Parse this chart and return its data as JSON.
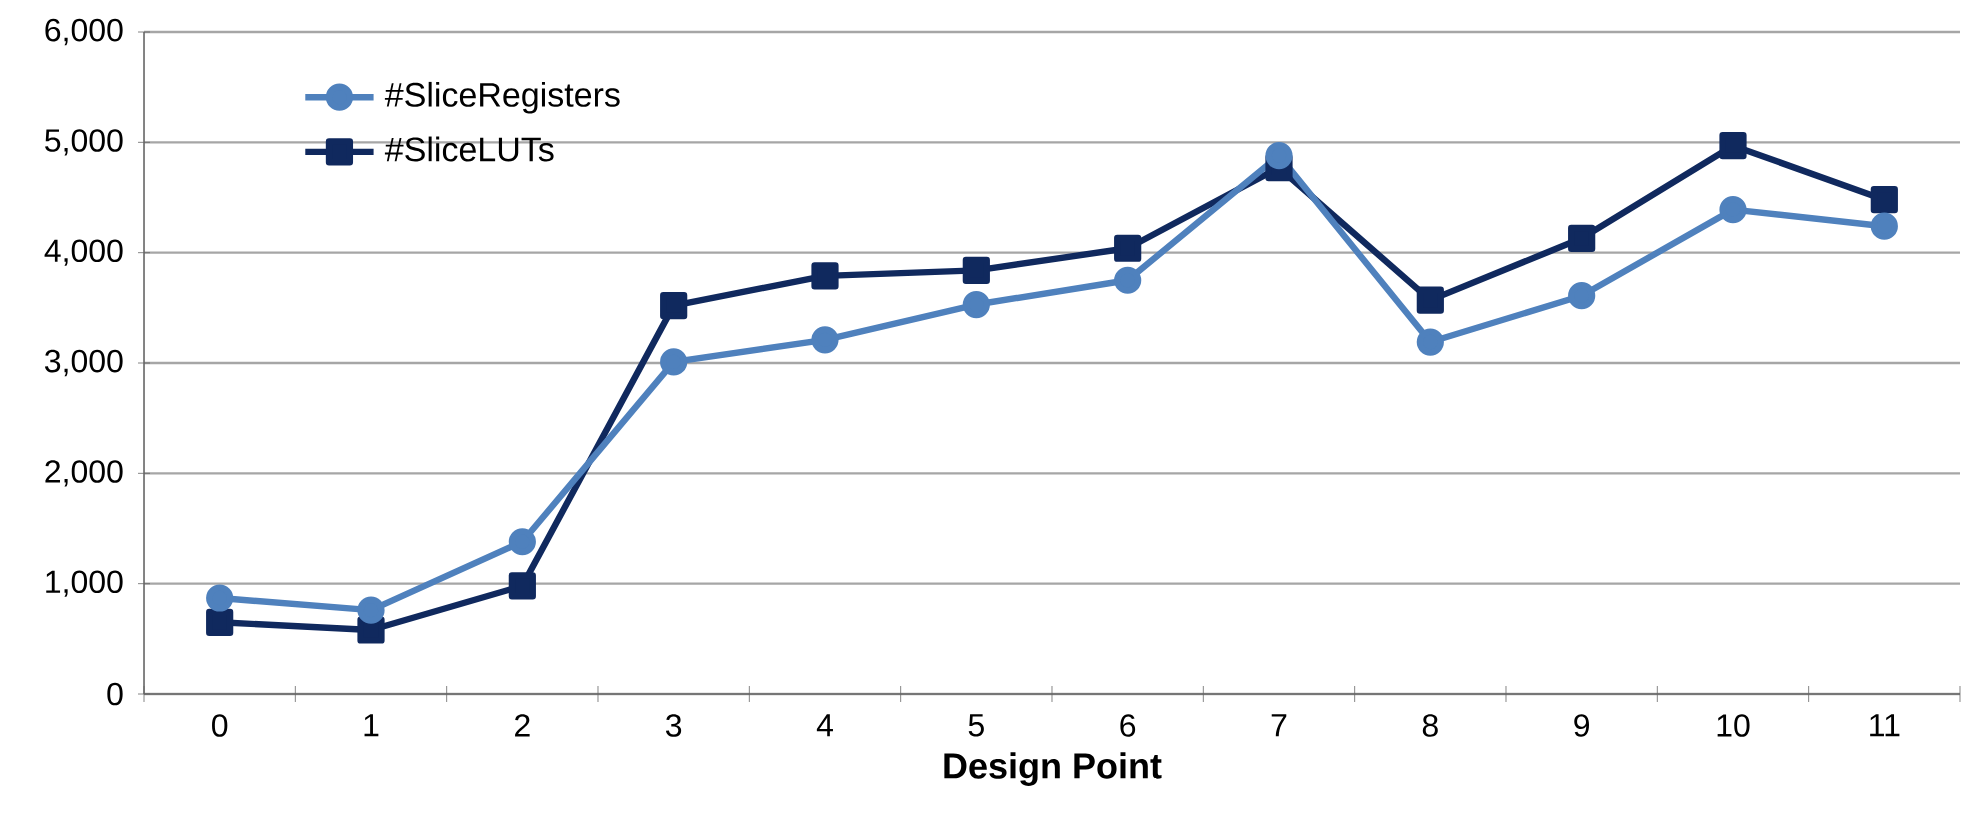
{
  "chart_data": {
    "type": "line",
    "xlabel": "Design Point",
    "categories": [
      "0",
      "1",
      "2",
      "3",
      "4",
      "5",
      "6",
      "7",
      "8",
      "9",
      "10",
      "11"
    ],
    "series": [
      {
        "name": "#SliceRegisters",
        "color": "#4f81bd",
        "marker": "circle",
        "values": [
          870,
          760,
          1380,
          3010,
          3210,
          3530,
          3750,
          4880,
          3190,
          3610,
          4390,
          4240
        ]
      },
      {
        "name": "#SliceLUTs",
        "color": "#10295e",
        "marker": "square",
        "values": [
          650,
          580,
          980,
          3520,
          3790,
          3840,
          4040,
          4770,
          3570,
          4130,
          4970,
          4480
        ]
      }
    ],
    "ylim": [
      0,
      6000
    ],
    "yticks": [
      {
        "value": 0,
        "label": "0"
      },
      {
        "value": 1000,
        "label": "1,000"
      },
      {
        "value": 2000,
        "label": "2,000"
      },
      {
        "value": 3000,
        "label": "3,000"
      },
      {
        "value": 4000,
        "label": "4,000"
      },
      {
        "value": 5000,
        "label": "5,000"
      },
      {
        "value": 6000,
        "label": "6,000"
      }
    ],
    "grid": "y",
    "legend": "top left",
    "line_style": "solid"
  }
}
